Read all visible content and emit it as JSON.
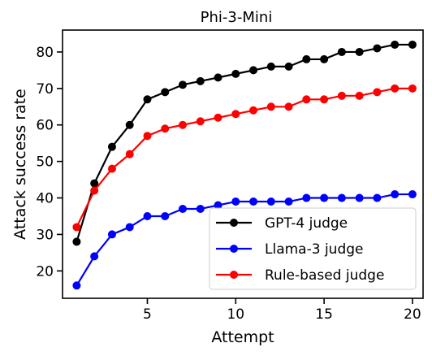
{
  "chart_data": {
    "type": "line",
    "title": "Phi-3-Mini",
    "xlabel": "Attempt",
    "ylabel": "Attack success rate",
    "xlim": [
      0.2,
      20.6
    ],
    "ylim": [
      12.5,
      86
    ],
    "xticks": [
      5,
      10,
      15,
      20
    ],
    "yticks": [
      20,
      30,
      40,
      50,
      60,
      70,
      80
    ],
    "grid": false,
    "legend_position": "bottom-right",
    "x": [
      1,
      2,
      3,
      4,
      5,
      6,
      7,
      8,
      9,
      10,
      11,
      12,
      13,
      14,
      15,
      16,
      17,
      18,
      19,
      20
    ],
    "series": [
      {
        "name": "GPT-4 judge",
        "color": "#000000",
        "values": [
          28,
          44,
          54,
          60,
          67,
          69,
          71,
          72,
          73,
          74,
          75,
          76,
          76,
          78,
          78,
          80,
          80,
          81,
          82,
          82
        ]
      },
      {
        "name": "Llama-3 judge",
        "color": "#0000ff",
        "values": [
          16,
          24,
          30,
          32,
          35,
          35,
          37,
          37,
          38,
          39,
          39,
          39,
          39,
          40,
          40,
          40,
          40,
          40,
          41,
          41
        ]
      },
      {
        "name": "Rule-based judge",
        "color": "#ff0000",
        "values": [
          32,
          42,
          48,
          52,
          57,
          59,
          60,
          61,
          62,
          63,
          64,
          65,
          65,
          67,
          67,
          68,
          68,
          69,
          70,
          70
        ]
      }
    ]
  }
}
